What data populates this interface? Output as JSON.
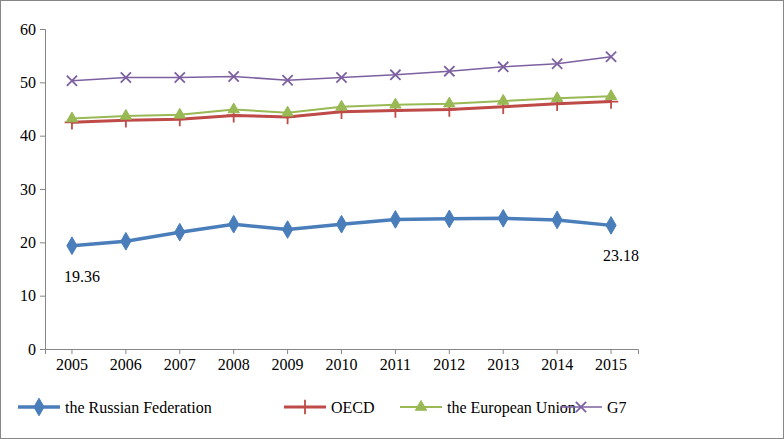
{
  "chart_data": {
    "type": "line",
    "categories": [
      "2005",
      "2006",
      "2007",
      "2008",
      "2009",
      "2010",
      "2011",
      "2012",
      "2013",
      "2014",
      "2015"
    ],
    "series": [
      {
        "name": "the Russian Federation",
        "color": "#4a7ebb",
        "marker": "diamond",
        "values": [
          19.36,
          20.2,
          21.9,
          23.4,
          22.4,
          23.4,
          24.3,
          24.4,
          24.5,
          24.2,
          23.18
        ]
      },
      {
        "name": "OECD",
        "color": "#be4b48",
        "marker": "plus",
        "values": [
          42.5,
          42.9,
          43.1,
          43.8,
          43.5,
          44.5,
          44.7,
          44.9,
          45.4,
          46.0,
          46.4
        ]
      },
      {
        "name": "the European Union",
        "color": "#98b954",
        "marker": "triangle",
        "values": [
          43.2,
          43.7,
          43.9,
          44.9,
          44.3,
          45.4,
          45.8,
          46.0,
          46.5,
          47.0,
          47.4
        ]
      },
      {
        "name": "G7",
        "color": "#7d60a0",
        "marker": "x",
        "values": [
          50.3,
          50.9,
          50.9,
          51.1,
          50.4,
          50.9,
          51.4,
          52.1,
          52.9,
          53.5,
          54.8
        ]
      }
    ],
    "annotations": [
      "19.36",
      "23.18"
    ],
    "ylim": [
      0,
      60
    ],
    "yticks": [
      0,
      10,
      20,
      30,
      40,
      50,
      60
    ],
    "grid": false,
    "legend": "bottom"
  }
}
